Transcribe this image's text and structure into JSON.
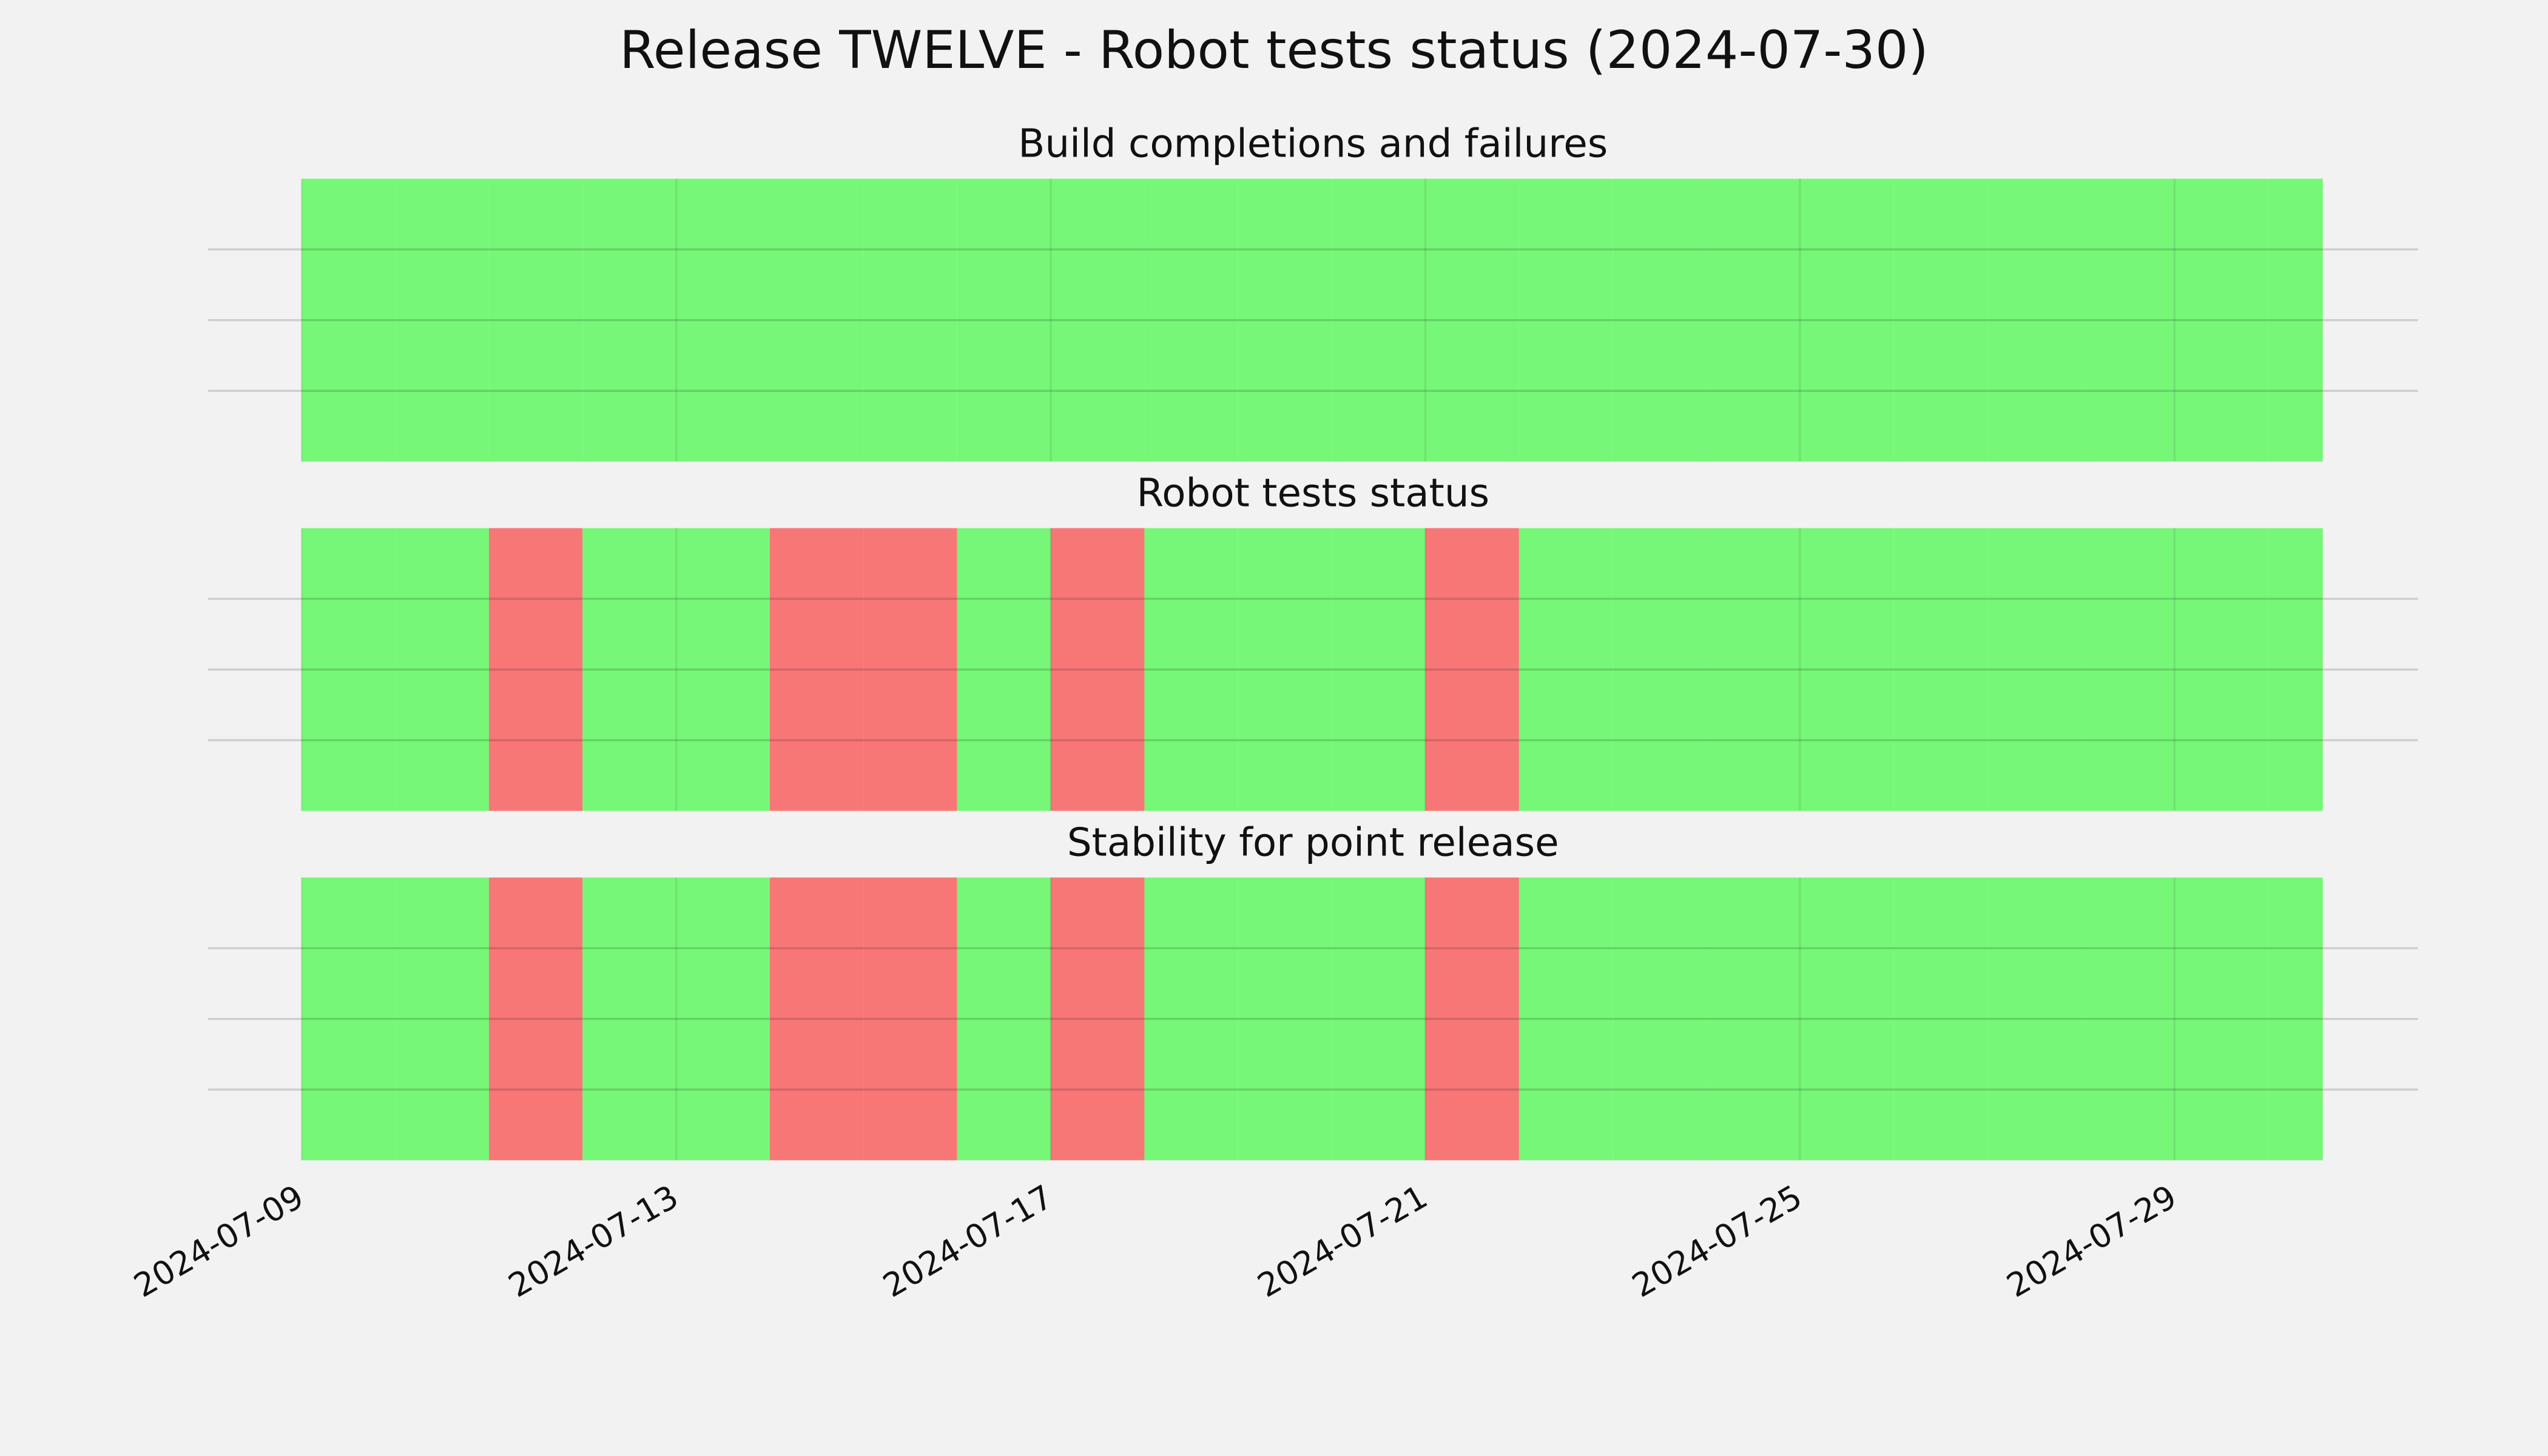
{
  "title": "Release TWELVE - Robot tests status (2024-07-30)",
  "chart_data": [
    {
      "type": "bar",
      "title": "Build completions and failures",
      "x": [
        "2024-07-09",
        "2024-07-10",
        "2024-07-11",
        "2024-07-12",
        "2024-07-13",
        "2024-07-14",
        "2024-07-15",
        "2024-07-16",
        "2024-07-17",
        "2024-07-18",
        "2024-07-19",
        "2024-07-20",
        "2024-07-21",
        "2024-07-22",
        "2024-07-23",
        "2024-07-24",
        "2024-07-25",
        "2024-07-26",
        "2024-07-27",
        "2024-07-28",
        "2024-07-29",
        "2024-07-30"
      ],
      "end": "2024-07-30T14:00",
      "values": [
        1,
        1,
        1,
        1,
        1,
        1,
        1,
        1,
        1,
        1,
        1,
        1,
        1,
        1,
        1,
        1,
        1,
        1,
        1,
        1,
        1,
        1
      ],
      "colors": [
        "#77f777",
        "#77f777",
        "#77f777",
        "#77f777",
        "#77f777",
        "#77f777",
        "#77f777",
        "#77f777",
        "#77f777",
        "#77f777",
        "#77f777",
        "#77f777",
        "#77f777",
        "#77f777",
        "#77f777",
        "#77f777",
        "#77f777",
        "#77f777",
        "#77f777",
        "#77f777",
        "#77f777",
        "#77f777"
      ],
      "xlim": [
        "2024-07-08",
        "2024-07-31T14:24"
      ],
      "xticks": [
        "2024-07-09",
        "2024-07-13",
        "2024-07-17",
        "2024-07-21",
        "2024-07-25",
        "2024-07-29"
      ],
      "ylim": [
        0,
        1
      ],
      "yticks": [
        0.25,
        0.5,
        0.75
      ],
      "grid": true
    },
    {
      "type": "bar",
      "title": "Robot tests status",
      "x": [
        "2024-07-09",
        "2024-07-10",
        "2024-07-11",
        "2024-07-12",
        "2024-07-13",
        "2024-07-14",
        "2024-07-15",
        "2024-07-16",
        "2024-07-17",
        "2024-07-18",
        "2024-07-19",
        "2024-07-20",
        "2024-07-21",
        "2024-07-22",
        "2024-07-23",
        "2024-07-24",
        "2024-07-25",
        "2024-07-26",
        "2024-07-27",
        "2024-07-28",
        "2024-07-29",
        "2024-07-30"
      ],
      "end": "2024-07-30T14:00",
      "values": [
        1,
        1,
        1,
        1,
        1,
        1,
        1,
        1,
        1,
        1,
        1,
        1,
        1,
        1,
        1,
        1,
        1,
        1,
        1,
        1,
        1,
        1
      ],
      "colors": [
        "#77f777",
        "#77f777",
        "#f77777",
        "#77f777",
        "#77f777",
        "#f77777",
        "#f77777",
        "#77f777",
        "#f77777",
        "#77f777",
        "#77f777",
        "#77f777",
        "#f77777",
        "#77f777",
        "#77f777",
        "#77f777",
        "#77f777",
        "#77f777",
        "#77f777",
        "#77f777",
        "#77f777",
        "#77f777"
      ],
      "xlim": [
        "2024-07-08",
        "2024-07-31T14:24"
      ],
      "xticks": [
        "2024-07-09",
        "2024-07-13",
        "2024-07-17",
        "2024-07-21",
        "2024-07-25",
        "2024-07-29"
      ],
      "ylim": [
        0,
        1
      ],
      "yticks": [
        0.25,
        0.5,
        0.75
      ],
      "grid": true
    },
    {
      "type": "bar",
      "title": "Stability for point release",
      "x": [
        "2024-07-09",
        "2024-07-10",
        "2024-07-11",
        "2024-07-12",
        "2024-07-13",
        "2024-07-14",
        "2024-07-15",
        "2024-07-16",
        "2024-07-17",
        "2024-07-18",
        "2024-07-19",
        "2024-07-20",
        "2024-07-21",
        "2024-07-22",
        "2024-07-23",
        "2024-07-24",
        "2024-07-25",
        "2024-07-26",
        "2024-07-27",
        "2024-07-28",
        "2024-07-29",
        "2024-07-30"
      ],
      "end": "2024-07-30T14:00",
      "values": [
        1,
        1,
        1,
        1,
        1,
        1,
        1,
        1,
        1,
        1,
        1,
        1,
        1,
        1,
        1,
        1,
        1,
        1,
        1,
        1,
        1,
        1
      ],
      "colors": [
        "#77f777",
        "#77f777",
        "#f77777",
        "#77f777",
        "#77f777",
        "#f77777",
        "#f77777",
        "#77f777",
        "#f77777",
        "#77f777",
        "#77f777",
        "#77f777",
        "#f77777",
        "#77f777",
        "#77f777",
        "#77f777",
        "#77f777",
        "#77f777",
        "#77f777",
        "#77f777",
        "#77f777",
        "#77f777"
      ],
      "xlim": [
        "2024-07-08",
        "2024-07-31T14:24"
      ],
      "xticks": [
        "2024-07-09",
        "2024-07-13",
        "2024-07-17",
        "2024-07-21",
        "2024-07-25",
        "2024-07-29"
      ],
      "ylim": [
        0,
        1
      ],
      "yticks": [
        0.25,
        0.5,
        0.75
      ],
      "grid": true
    }
  ]
}
